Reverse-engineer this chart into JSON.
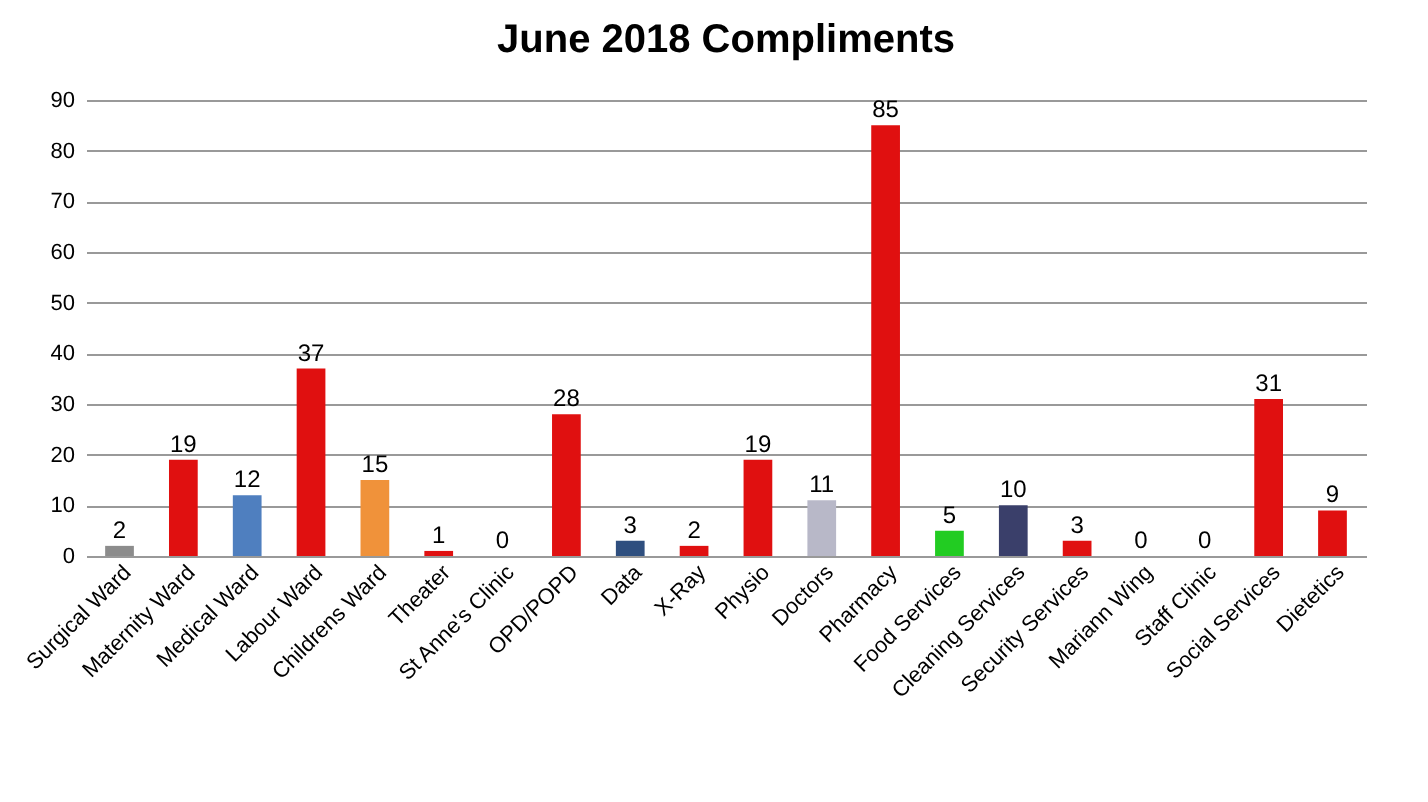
{
  "chart_data": {
    "type": "bar",
    "title": "June 2018 Compliments",
    "categories": [
      "Surgical Ward",
      "Maternity Ward",
      "Medical Ward",
      "Labour Ward",
      "Childrens Ward",
      "Theater",
      "St Anne's Clinic",
      "OPD/POPD",
      "Data",
      "X-Ray",
      "Physio",
      "Doctors",
      "Pharmacy",
      "Food Services",
      "Cleaning Services",
      "Security Services",
      "Mariann Wing",
      "Staff Clinic",
      "Social Services",
      "Dietetics"
    ],
    "values": [
      2,
      19,
      12,
      37,
      15,
      1,
      0,
      28,
      3,
      2,
      19,
      11,
      85,
      5,
      10,
      3,
      0,
      0,
      31,
      9
    ],
    "colors": [
      "#8c8c8c",
      "#e01010",
      "#4f7fbf",
      "#e01010",
      "#f0923a",
      "#e01010",
      "#e01010",
      "#e01010",
      "#2f4f7f",
      "#e01010",
      "#e01010",
      "#b8b8c8",
      "#e01010",
      "#22cc22",
      "#3a3f6a",
      "#e01010",
      "#e01010",
      "#e01010",
      "#e01010",
      "#e01010"
    ],
    "ylim": [
      0,
      90
    ],
    "yticks": [
      0,
      10,
      20,
      30,
      40,
      50,
      60,
      70,
      80,
      90
    ],
    "grid": true,
    "data_labels": true
  }
}
